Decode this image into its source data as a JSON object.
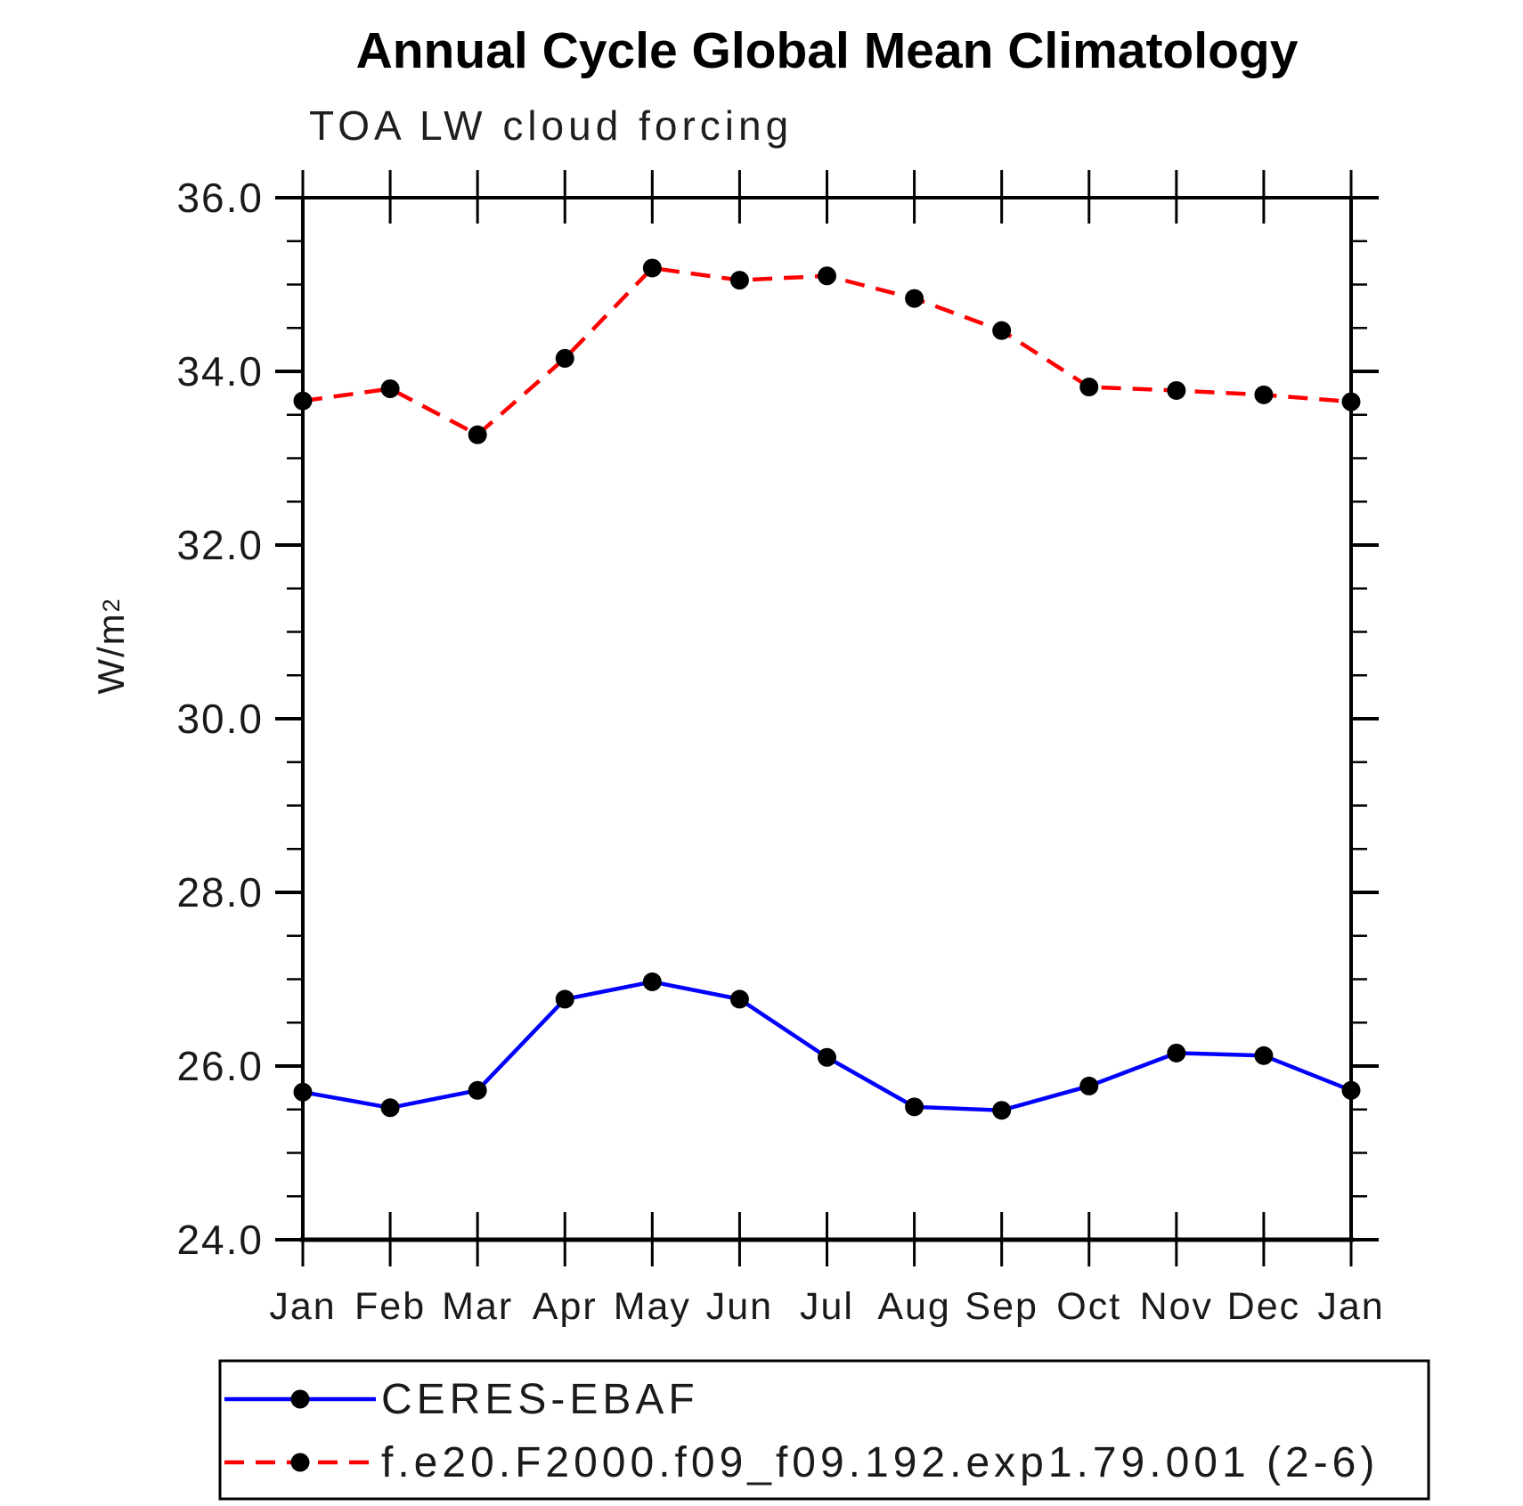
{
  "header": {
    "title": "Annual Cycle Global Mean Climatology",
    "subtitle": "TOA LW cloud forcing"
  },
  "ylabel": {
    "base": "W/m",
    "sup": "2"
  },
  "chart_data": {
    "type": "line",
    "title": "Annual Cycle Global Mean Climatology",
    "subtitle": "TOA LW cloud forcing",
    "xlabel": "",
    "ylabel": "W/m2",
    "x_ticklabels": [
      "Jan",
      "Feb",
      "Mar",
      "Apr",
      "May",
      "Jun",
      "Jul",
      "Aug",
      "Sep",
      "Oct",
      "Nov",
      "Dec",
      "Jan"
    ],
    "ylim": [
      24.0,
      36.0
    ],
    "y_major_ticks": [
      24.0,
      26.0,
      28.0,
      30.0,
      32.0,
      34.0,
      36.0
    ],
    "y_tick_labels": [
      "24.0",
      "26.0",
      "28.0",
      "30.0",
      "32.0",
      "34.0",
      "36.0"
    ],
    "y_minor_step": 0.5,
    "grid": false,
    "legend_position": "bottom",
    "axis_color": "#000000",
    "marker_color": "#000000",
    "series": [
      {
        "name": "CERES-EBAF",
        "color": "#0000ff",
        "line_style": "solid",
        "marker": "circle",
        "values": [
          25.7,
          25.52,
          25.72,
          26.77,
          26.97,
          26.77,
          26.1,
          25.53,
          25.49,
          25.77,
          26.15,
          26.12,
          25.72
        ]
      },
      {
        "name": "f.e20.F2000.f09_f09.192.exp1.79.001 (2-6)",
        "color": "#ff0000",
        "line_style": "dashed",
        "marker": "circle",
        "values": [
          33.66,
          33.8,
          33.27,
          34.15,
          35.19,
          35.05,
          35.1,
          34.84,
          34.47,
          33.82,
          33.78,
          33.73,
          33.65
        ]
      }
    ]
  }
}
